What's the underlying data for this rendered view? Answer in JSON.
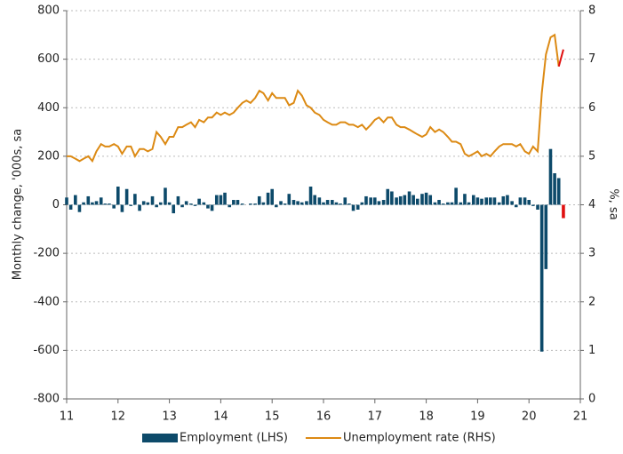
{
  "chart_data": {
    "type": "combo",
    "ylabel": "Monthly change, '000s, sa",
    "y2label": "%, sa",
    "x": [
      11,
      11.08,
      11.17,
      11.25,
      11.33,
      11.42,
      11.5,
      11.58,
      11.67,
      11.75,
      11.83,
      11.92,
      12,
      12.08,
      12.17,
      12.25,
      12.33,
      12.42,
      12.5,
      12.58,
      12.67,
      12.75,
      12.83,
      12.92,
      13,
      13.08,
      13.17,
      13.25,
      13.33,
      13.42,
      13.5,
      13.58,
      13.67,
      13.75,
      13.83,
      13.92,
      14,
      14.08,
      14.17,
      14.25,
      14.33,
      14.42,
      14.5,
      14.58,
      14.67,
      14.75,
      14.83,
      14.92,
      15,
      15.08,
      15.17,
      15.25,
      15.33,
      15.42,
      15.5,
      15.58,
      15.67,
      15.75,
      15.83,
      15.92,
      16,
      16.08,
      16.17,
      16.25,
      16.33,
      16.42,
      16.5,
      16.58,
      16.67,
      16.75,
      16.83,
      16.92,
      17,
      17.08,
      17.17,
      17.25,
      17.33,
      17.42,
      17.5,
      17.58,
      17.67,
      17.75,
      17.83,
      17.92,
      18,
      18.08,
      18.17,
      18.25,
      18.33,
      18.42,
      18.5,
      18.58,
      18.67,
      18.75,
      18.83,
      18.92,
      19,
      19.08,
      19.17,
      19.25,
      19.33,
      19.42,
      19.5,
      19.58,
      19.67,
      19.75,
      19.83,
      19.92,
      20,
      20.08,
      20.17,
      20.25,
      20.33,
      20.42,
      20.5,
      20.58,
      20.67
    ],
    "series": [
      {
        "name": "Employment (LHS)",
        "type": "bar",
        "color": "#0d4a6a",
        "values": [
          30,
          -20,
          40,
          -30,
          10,
          35,
          10,
          15,
          30,
          5,
          5,
          -15,
          75,
          -30,
          65,
          -5,
          45,
          -25,
          15,
          10,
          35,
          -10,
          10,
          70,
          10,
          -35,
          35,
          -10,
          15,
          5,
          -5,
          25,
          10,
          -15,
          -25,
          40,
          40,
          50,
          -10,
          20,
          20,
          5,
          0,
          5,
          5,
          35,
          10,
          50,
          65,
          -10,
          15,
          5,
          45,
          20,
          15,
          10,
          15,
          75,
          40,
          30,
          10,
          20,
          20,
          10,
          5,
          30,
          5,
          -25,
          -20,
          10,
          35,
          30,
          30,
          15,
          20,
          65,
          55,
          30,
          35,
          40,
          55,
          40,
          25,
          45,
          50,
          40,
          10,
          20,
          5,
          10,
          10,
          70,
          10,
          45,
          10,
          40,
          30,
          25,
          30,
          30,
          30,
          10,
          35,
          40,
          15,
          -10,
          30,
          30,
          20,
          -5,
          -20,
          -605,
          -265,
          230,
          130,
          110,
          -55
        ]
      },
      {
        "name": "Unemployment rate (RHS)",
        "type": "line",
        "axis": "y2",
        "color": "#dc8a14",
        "values": [
          5.0,
          5.0,
          4.95,
          4.9,
          4.95,
          5.0,
          4.9,
          5.1,
          5.25,
          5.2,
          5.2,
          5.25,
          5.2,
          5.05,
          5.2,
          5.2,
          5.0,
          5.15,
          5.15,
          5.1,
          5.15,
          5.5,
          5.4,
          5.25,
          5.4,
          5.4,
          5.6,
          5.6,
          5.65,
          5.7,
          5.6,
          5.75,
          5.7,
          5.8,
          5.8,
          5.9,
          5.85,
          5.9,
          5.85,
          5.9,
          6.0,
          6.1,
          6.15,
          6.1,
          6.2,
          6.35,
          6.3,
          6.15,
          6.3,
          6.2,
          6.2,
          6.2,
          6.05,
          6.1,
          6.35,
          6.25,
          6.05,
          6.0,
          5.9,
          5.85,
          5.75,
          5.7,
          5.65,
          5.65,
          5.7,
          5.7,
          5.65,
          5.65,
          5.6,
          5.65,
          5.55,
          5.65,
          5.75,
          5.8,
          5.7,
          5.8,
          5.8,
          5.65,
          5.6,
          5.6,
          5.55,
          5.5,
          5.45,
          5.4,
          5.45,
          5.6,
          5.5,
          5.55,
          5.5,
          5.4,
          5.3,
          5.3,
          5.25,
          5.05,
          5.0,
          5.05,
          5.1,
          5.0,
          5.05,
          5.0,
          5.1,
          5.2,
          5.25,
          5.25,
          5.25,
          5.2,
          5.25,
          5.1,
          5.05,
          5.2,
          5.1,
          6.3,
          7.1,
          7.45,
          7.5,
          6.85,
          7.2
        ]
      }
    ],
    "last_color": "#e01010",
    "xlim": [
      11,
      21
    ],
    "xticks": [
      11,
      12,
      13,
      14,
      15,
      16,
      17,
      18,
      19,
      20,
      21
    ],
    "ylim": [
      -800,
      800
    ],
    "yticks": [
      -800,
      -600,
      -400,
      -200,
      0,
      200,
      400,
      600,
      800
    ],
    "y2lim": [
      0,
      8
    ],
    "y2ticks": [
      0,
      1,
      2,
      3,
      4,
      5,
      6,
      7,
      8
    ],
    "grid": true,
    "legend": "bottom"
  }
}
